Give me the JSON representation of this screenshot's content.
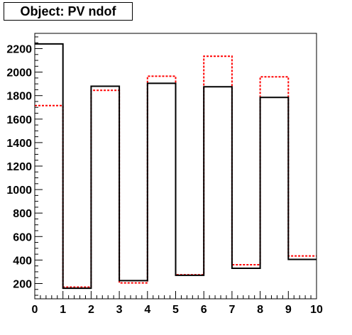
{
  "title": "Object: PV ndof",
  "chart_data": {
    "type": "histogram",
    "title": "Object: PV ndof",
    "xlim": [
      0,
      10
    ],
    "ylim": [
      70,
      2330
    ],
    "x_ticks": [
      "0",
      "1",
      "2",
      "3",
      "4",
      "5",
      "6",
      "7",
      "8",
      "9",
      "10"
    ],
    "y_ticks": [
      "200",
      "400",
      "600",
      "800",
      "1000",
      "1200",
      "1400",
      "1600",
      "1800",
      "2000",
      "2200"
    ],
    "bin_edges": [
      0,
      1,
      2,
      3,
      4,
      5,
      6,
      7,
      8,
      9,
      10
    ],
    "grid": false,
    "series": [
      {
        "style": "solid",
        "color": "#000000",
        "values": [
          2240,
          160,
          1880,
          225,
          1905,
          270,
          1875,
          330,
          1785,
          405
        ]
      },
      {
        "style": "dashed",
        "color": "#ff0000",
        "values": [
          1715,
          170,
          1845,
          205,
          1965,
          275,
          2135,
          360,
          1960,
          435
        ]
      }
    ]
  }
}
